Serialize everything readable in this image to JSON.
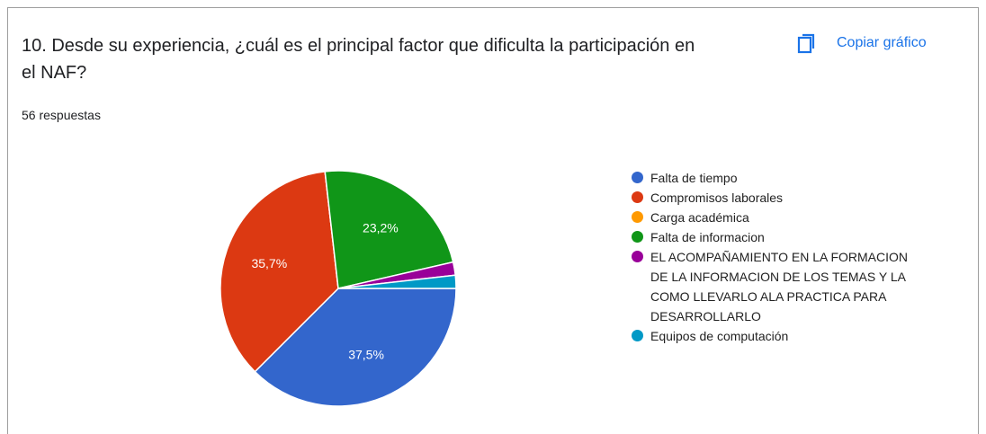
{
  "header": {
    "title": "10.  Desde su experiencia, ¿cuál es el principal factor que dificulta la participación en el NAF?",
    "button": "Copiar gráfico",
    "responses": "56 respuestas"
  },
  "chart_data": {
    "type": "pie",
    "categories": [
      "Falta de tiempo",
      "Compromisos laborales",
      "Carga académica",
      "Falta de informacion",
      "EL ACOMPAÑAMIENTO EN LA FORMACION DE LA INFORMACION DE LOS TEMAS Y LA COMO LLEVARLO ALA PRACTICA PARA DESARROLLARLO",
      "Equipos de computación"
    ],
    "values": [
      37.5,
      35.7,
      0,
      23.2,
      1.8,
      1.8
    ],
    "value_labels": [
      "37,5%",
      "35,7%",
      null,
      "23,2%",
      null,
      null
    ],
    "colors": [
      "#3366cc",
      "#dc3912",
      "#ff9900",
      "#109618",
      "#990099",
      "#0099c6"
    ],
    "legend": "right"
  }
}
